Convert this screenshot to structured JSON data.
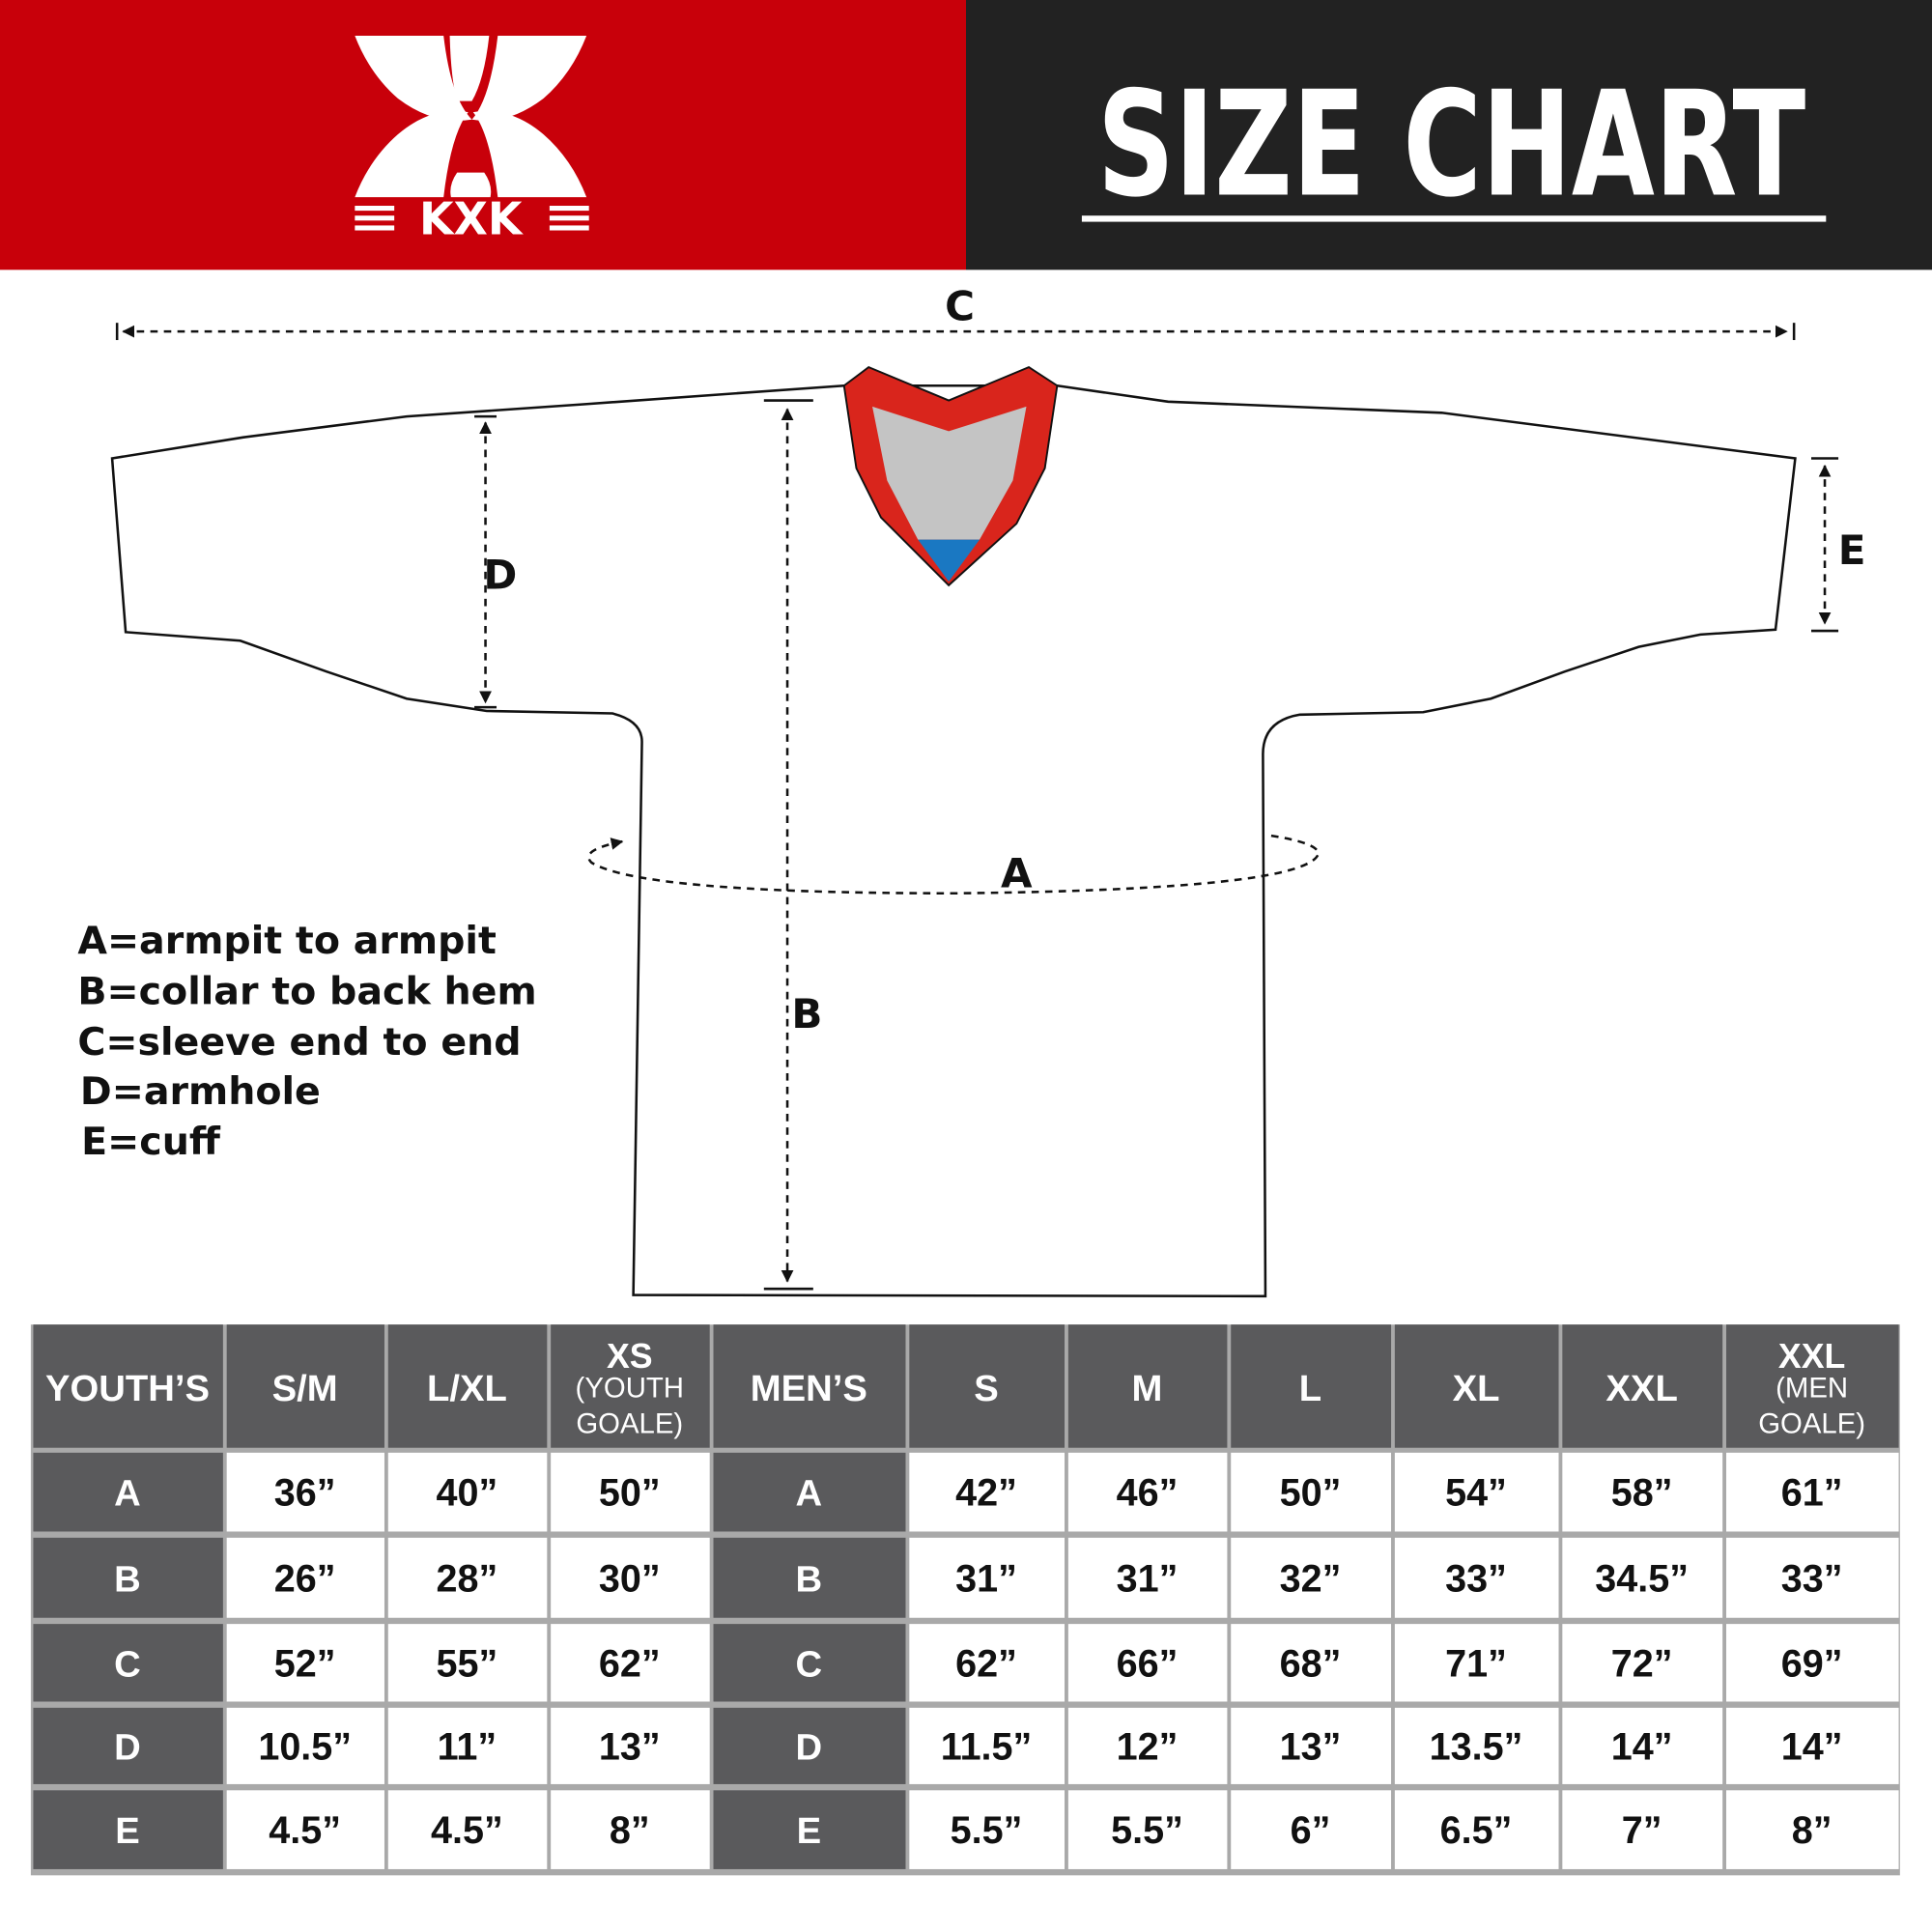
{
  "header": {
    "brand": "KXK",
    "title": "SIZE CHART",
    "colors": {
      "brand_red": "#c8000a",
      "title_bg": "#222222",
      "table_header": "#5a5a5c",
      "collar_red": "#d9251c",
      "collar_grey": "#c4c4c4",
      "collar_blue": "#1a78c2"
    }
  },
  "diagram": {
    "labels": {
      "a": "A",
      "b": "B",
      "c": "C",
      "d": "D",
      "e": "E"
    },
    "legend": [
      "A=armpit to armpit",
      "B=collar to back hem",
      "C=sleeve end to end",
      "D=armhole",
      "E=cuff"
    ]
  },
  "table": {
    "headers": [
      {
        "main": "YOUTH’S",
        "sub": []
      },
      {
        "main": "S/M",
        "sub": []
      },
      {
        "main": "L/XL",
        "sub": []
      },
      {
        "main": "XS",
        "sub": [
          "(YOUTH",
          "GOALE)"
        ]
      },
      {
        "main": "MEN’S",
        "sub": []
      },
      {
        "main": "S",
        "sub": []
      },
      {
        "main": "M",
        "sub": []
      },
      {
        "main": "L",
        "sub": []
      },
      {
        "main": "XL",
        "sub": []
      },
      {
        "main": "XXL",
        "sub": []
      },
      {
        "main": "XXL",
        "sub": [
          "(MEN",
          "GOALE)"
        ]
      }
    ],
    "rows": [
      [
        "A",
        "36”",
        "40”",
        "50”",
        "A",
        "42”",
        "46”",
        "50”",
        "54”",
        "58”",
        "61”"
      ],
      [
        "B",
        "26”",
        "28”",
        "30”",
        "B",
        "31”",
        "31”",
        "32”",
        "33”",
        "34.5”",
        "33”"
      ],
      [
        "C",
        "52”",
        "55”",
        "62”",
        "C",
        "62”",
        "66”",
        "68”",
        "71”",
        "72”",
        "69”"
      ],
      [
        "D",
        "10.5”",
        "11”",
        "13”",
        "D",
        "11.5”",
        "12”",
        "13”",
        "13.5”",
        "14”",
        "14”"
      ],
      [
        "E",
        "4.5”",
        "4.5”",
        "8”",
        "E",
        "5.5”",
        "5.5”",
        "6”",
        "6.5”",
        "7”",
        "8”"
      ]
    ]
  }
}
